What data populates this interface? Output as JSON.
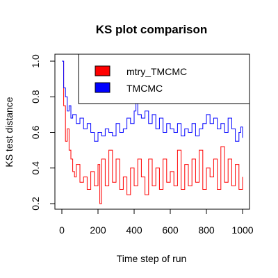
{
  "chart_data": {
    "type": "line",
    "title": "KS plot comparison",
    "xlabel": "Time step of run",
    "ylabel": "KS test distance",
    "xlim": [
      0,
      1000
    ],
    "ylim": [
      0.2,
      1.0
    ],
    "xticks": [
      0,
      200,
      400,
      600,
      800,
      1000
    ],
    "yticks": [
      0.2,
      0.4,
      0.6,
      0.8,
      1.0
    ],
    "xtick_labels": [
      "0",
      "200",
      "400",
      "600",
      "800",
      "1000"
    ],
    "ytick_labels": [
      "0.2",
      "0.4",
      "0.6",
      "0.8",
      "1.0"
    ],
    "grid": false,
    "legend_position": "top-right",
    "series": [
      {
        "name": "mtry_TMCMC",
        "color": "#ff0000",
        "x": [
          0,
          10,
          20,
          30,
          40,
          50,
          60,
          70,
          80,
          100,
          120,
          140,
          160,
          180,
          200,
          210,
          220,
          240,
          260,
          280,
          300,
          320,
          340,
          360,
          380,
          400,
          420,
          440,
          460,
          480,
          500,
          520,
          540,
          560,
          580,
          600,
          620,
          640,
          660,
          680,
          700,
          720,
          740,
          760,
          780,
          800,
          820,
          840,
          860,
          880,
          900,
          920,
          940,
          960,
          980,
          1000
        ],
        "y": [
          1.0,
          0.75,
          0.55,
          0.62,
          0.5,
          0.45,
          0.38,
          0.35,
          0.42,
          0.32,
          0.35,
          0.28,
          0.38,
          0.3,
          0.42,
          0.2,
          0.45,
          0.3,
          0.5,
          0.32,
          0.45,
          0.28,
          0.35,
          0.25,
          0.4,
          0.3,
          0.45,
          0.35,
          0.25,
          0.45,
          0.3,
          0.4,
          0.28,
          0.45,
          0.32,
          0.38,
          0.3,
          0.5,
          0.28,
          0.42,
          0.3,
          0.45,
          0.32,
          0.5,
          0.28,
          0.4,
          0.35,
          0.45,
          0.28,
          0.52,
          0.32,
          0.45,
          0.3,
          0.42,
          0.28,
          0.35
        ]
      },
      {
        "name": "TMCMC",
        "color": "#0000ff",
        "x": [
          0,
          10,
          20,
          30,
          40,
          50,
          60,
          80,
          100,
          120,
          140,
          160,
          180,
          200,
          220,
          240,
          260,
          280,
          300,
          320,
          340,
          360,
          380,
          400,
          410,
          420,
          440,
          460,
          480,
          500,
          520,
          540,
          560,
          580,
          600,
          620,
          640,
          660,
          680,
          700,
          720,
          740,
          760,
          780,
          800,
          820,
          840,
          860,
          880,
          900,
          920,
          940,
          960,
          980,
          990,
          1000
        ],
        "y": [
          1.0,
          0.85,
          0.8,
          0.72,
          0.75,
          0.68,
          0.7,
          0.65,
          0.68,
          0.62,
          0.65,
          0.6,
          0.55,
          0.6,
          0.58,
          0.62,
          0.6,
          0.58,
          0.65,
          0.6,
          0.62,
          0.68,
          0.65,
          0.72,
          0.77,
          0.7,
          0.68,
          0.72,
          0.65,
          0.7,
          0.62,
          0.68,
          0.6,
          0.65,
          0.62,
          0.6,
          0.65,
          0.58,
          0.62,
          0.6,
          0.65,
          0.58,
          0.62,
          0.65,
          0.7,
          0.65,
          0.68,
          0.62,
          0.65,
          0.6,
          0.68,
          0.62,
          0.55,
          0.6,
          0.63,
          0.57
        ]
      }
    ]
  }
}
